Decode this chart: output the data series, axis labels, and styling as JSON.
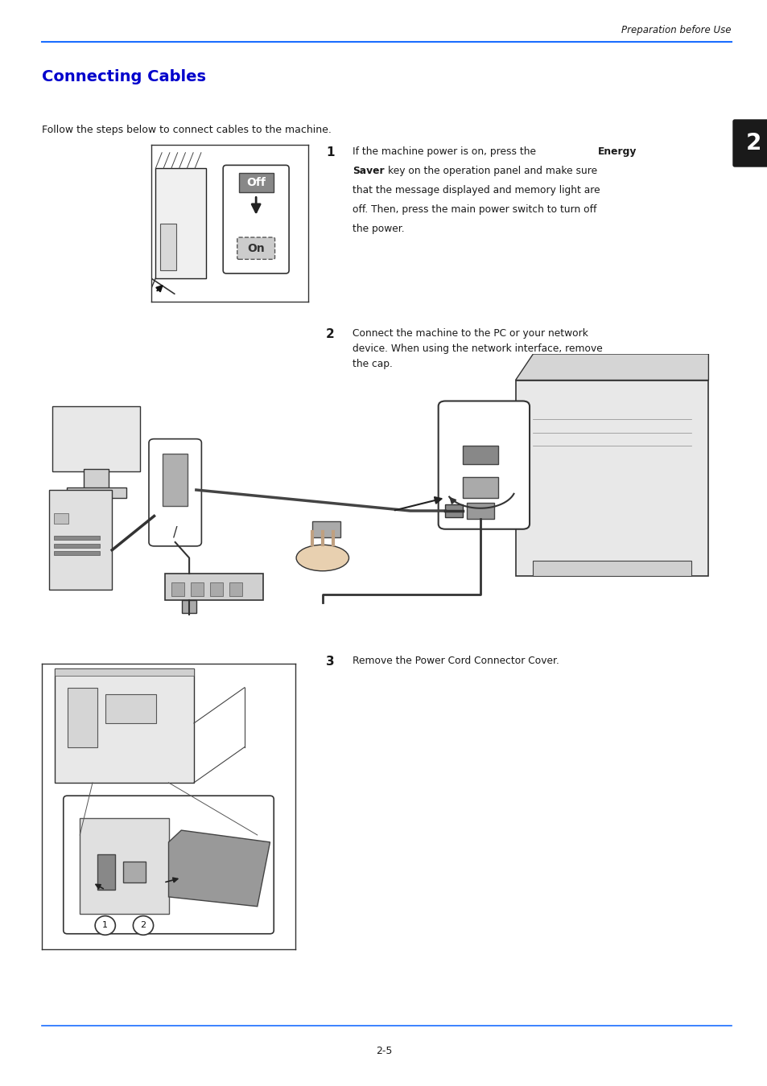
{
  "page_width": 9.54,
  "page_height": 13.5,
  "bg_color": "#ffffff",
  "top_header_text": "Preparation before Use",
  "header_line_color": "#1a56ff",
  "title": "Connecting Cables",
  "title_color": "#0000cc",
  "intro_text": "Follow the steps below to connect cables to the machine.",
  "step1_text": "If the machine power is on, press the Energy\nSaver key on the operation panel and make sure\nthat the message displayed and memory light are\noff. Then, press the main power switch to turn off\nthe power.",
  "step2_text": "Connect the machine to the PC or your network\ndevice. When using the network interface, remove\nthe cap.",
  "step3_text": "Remove the Power Cord Connector Cover.",
  "chapter_badge_text": "2",
  "footer_text": "2-5",
  "text_color": "#1a1a1a",
  "badge_color": "#1a1a1a",
  "title_fontsize": 14,
  "intro_fontsize": 9,
  "step_num_fontsize": 11,
  "step_text_fontsize": 8.8,
  "header_fontsize": 8.5,
  "footer_fontsize": 9,
  "badge_fontsize": 20,
  "line_color": "#1a6dff"
}
